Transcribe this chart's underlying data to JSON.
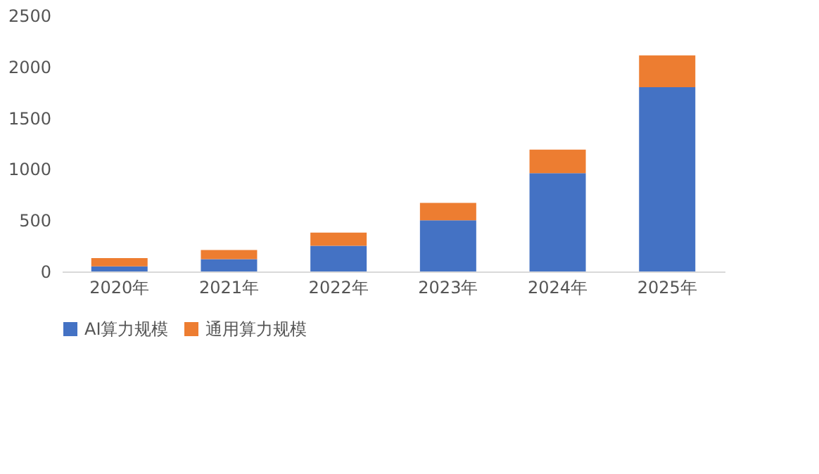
{
  "chart_data": {
    "type": "bar",
    "stacked": true,
    "categories": [
      "2020年",
      "2021年",
      "2022年",
      "2023年",
      "2024年",
      "2025年"
    ],
    "series": [
      {
        "name": "AI算力规模",
        "color": "#4472c4",
        "values": [
          50,
          120,
          250,
          500,
          960,
          1800
        ]
      },
      {
        "name": "通用算力规模",
        "color": "#ed7d31",
        "values": [
          80,
          90,
          130,
          170,
          230,
          310
        ]
      }
    ],
    "ylim": [
      0,
      2500
    ],
    "yticks": [
      0,
      500,
      1000,
      1500,
      2000,
      2500
    ],
    "grid": false,
    "legend": "bottom"
  }
}
